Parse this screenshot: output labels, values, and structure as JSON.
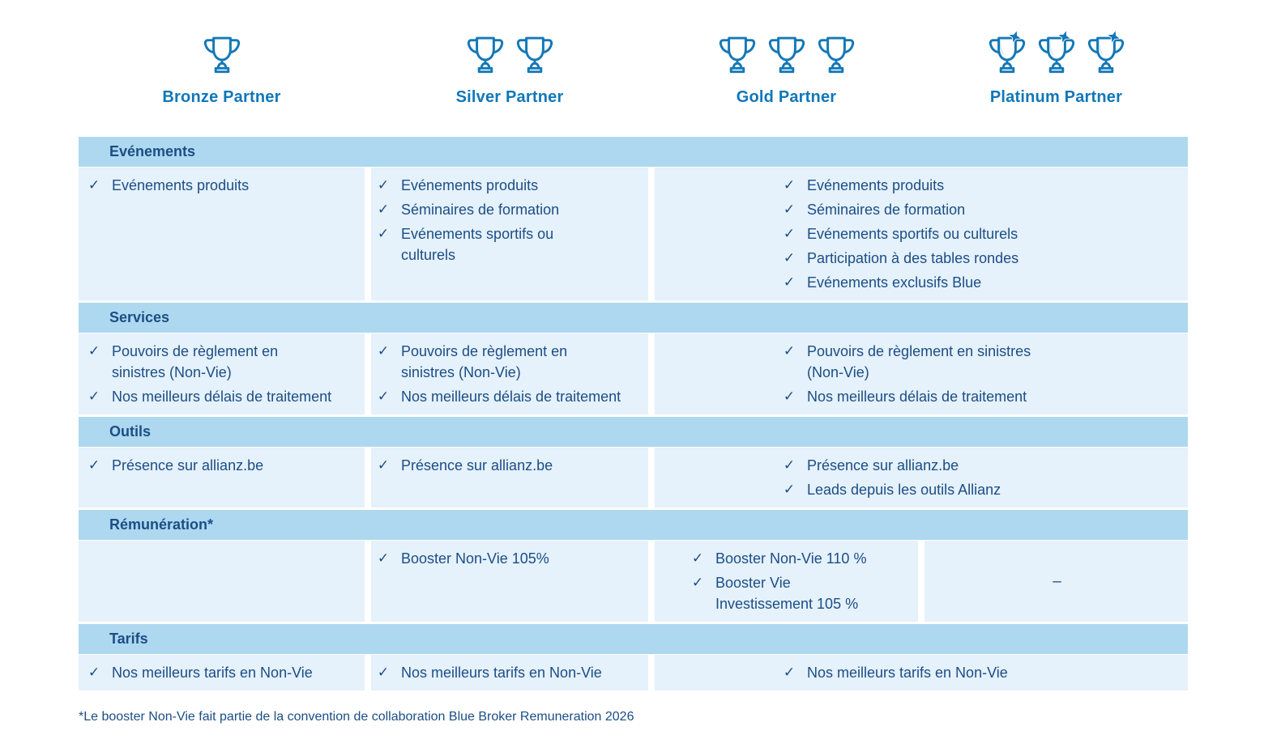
{
  "colors": {
    "navy": "#1B4E85",
    "bright_blue": "#1077B9",
    "section_band_bg": "#AED8F0",
    "row_bg": "#E5F1FB",
    "trophy_stroke": "#1478B7",
    "trophy_highlight": "#D7E9F6"
  },
  "tiers": [
    {
      "id": "bronze",
      "name": "Bronze Partner",
      "trophies": 1,
      "starred": false
    },
    {
      "id": "silver",
      "name": "Silver Partner",
      "trophies": 2,
      "starred": false
    },
    {
      "id": "gold",
      "name": "Gold Partner",
      "trophies": 3,
      "starred": false
    },
    {
      "id": "platinum",
      "name": "Platinum Partner",
      "trophies": 3,
      "starred": true
    }
  ],
  "check_glyph": "✓",
  "sections": [
    {
      "id": "evenements",
      "title": "Evénements",
      "cells": [
        {
          "span": "bronze",
          "items": [
            "Evénements produits"
          ]
        },
        {
          "span": "silver",
          "items": [
            "Evénements produits",
            "Séminaires de formation",
            "Evénements sportifs ou\nculturels"
          ]
        },
        {
          "span": "gold-platinum",
          "items": [
            "Evénements produits",
            "Séminaires de formation",
            "Evénements sportifs ou culturels",
            "Participation à des tables rondes",
            "Evénements exclusifs Blue"
          ]
        }
      ]
    },
    {
      "id": "services",
      "title": "Services",
      "cells": [
        {
          "span": "bronze",
          "items": [
            "Pouvoirs de règlement en\nsinistres (Non-Vie)",
            "Nos meilleurs délais de traitement"
          ]
        },
        {
          "span": "silver",
          "items": [
            "Pouvoirs de règlement en\nsinistres (Non-Vie)",
            "Nos meilleurs délais de traitement"
          ]
        },
        {
          "span": "gold-platinum",
          "items": [
            "Pouvoirs de règlement en sinistres\n(Non-Vie)",
            "Nos meilleurs délais de traitement"
          ]
        }
      ]
    },
    {
      "id": "outils",
      "title": "Outils",
      "cells": [
        {
          "span": "bronze",
          "items": [
            "Présence sur allianz.be"
          ]
        },
        {
          "span": "silver",
          "items": [
            "Présence sur allianz.be"
          ]
        },
        {
          "span": "gold-platinum",
          "items": [
            "Présence sur allianz.be",
            "Leads depuis les outils Allianz"
          ]
        }
      ]
    },
    {
      "id": "remuneration",
      "title": "Rémunération*",
      "cells": [
        {
          "span": "bronze",
          "items": []
        },
        {
          "span": "silver",
          "items": [
            "Booster Non-Vie 105%"
          ]
        },
        {
          "span": "gold",
          "items": [
            "Booster Non-Vie 110 %",
            "Booster Vie\nInvestissement 105 %"
          ]
        },
        {
          "span": "platinum",
          "dash": "–"
        }
      ]
    },
    {
      "id": "tarifs",
      "title": "Tarifs",
      "cells": [
        {
          "span": "bronze",
          "items": [
            "Nos meilleurs tarifs en Non-Vie"
          ]
        },
        {
          "span": "silver",
          "items": [
            "Nos meilleurs tarifs en Non-Vie"
          ]
        },
        {
          "span": "gold-platinum",
          "items": [
            "Nos meilleurs tarifs en Non-Vie"
          ]
        }
      ]
    }
  ],
  "footnote": "*Le booster Non-Vie fait partie de la convention de collaboration Blue Broker Remuneration 2026"
}
